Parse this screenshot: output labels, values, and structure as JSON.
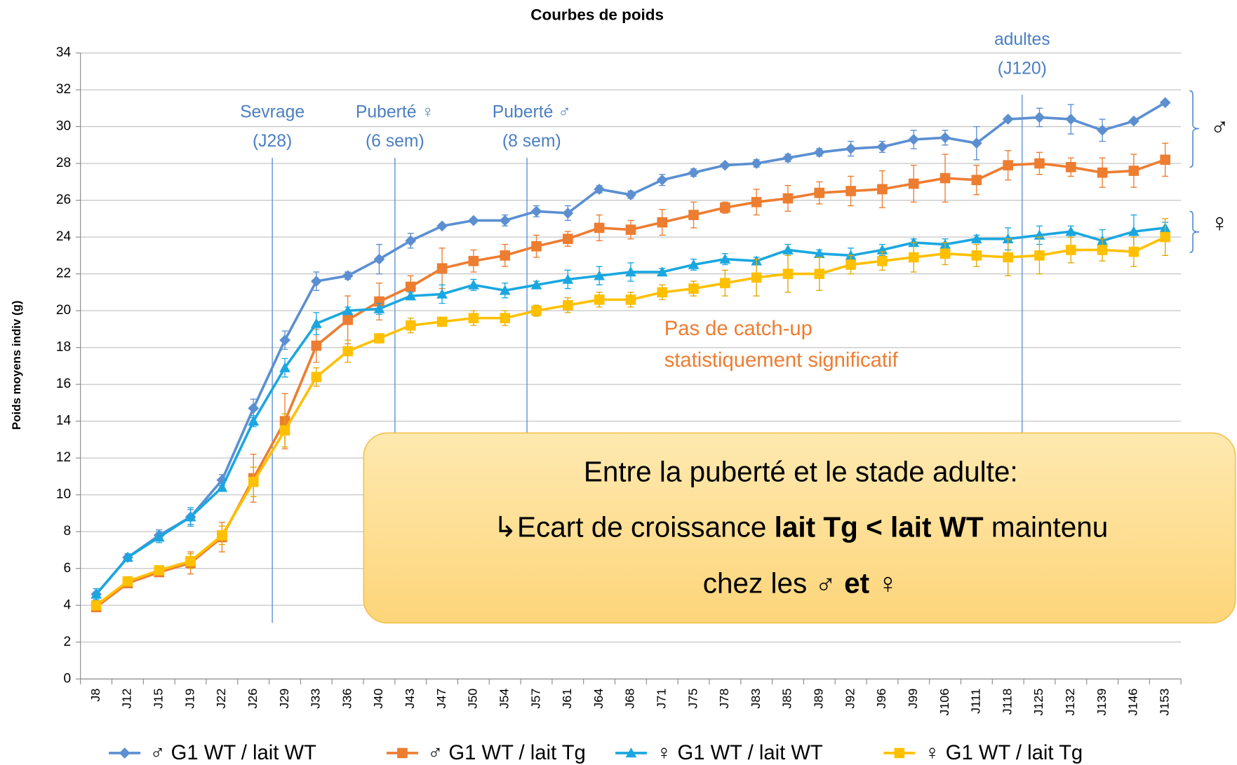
{
  "chart_data": {
    "type": "line",
    "title": "Courbes de poids",
    "y_label": "Poids moyens indiv (g)",
    "categories": [
      "J8",
      "J12",
      "J15",
      "J19",
      "J22",
      "J26",
      "J29",
      "J33",
      "J36",
      "J40",
      "J43",
      "J47",
      "J50",
      "J54",
      "J57",
      "J61",
      "J64",
      "J68",
      "J71",
      "J75",
      "J78",
      "J83",
      "J85",
      "J89",
      "J92",
      "J96",
      "J99",
      "J106",
      "J111",
      "J118",
      "J125",
      "J132",
      "J139",
      "J146",
      "J153"
    ],
    "ylim": [
      0,
      34
    ],
    "yticks": [
      0,
      2,
      4,
      6,
      8,
      10,
      12,
      14,
      16,
      18,
      20,
      22,
      24,
      26,
      28,
      30,
      32,
      34
    ],
    "grid": true,
    "series": [
      {
        "name": "♂ G1 WT / lait WT",
        "color": "#5b8fd1",
        "marker": "diamond",
        "values": [
          4.6,
          6.6,
          7.8,
          8.8,
          10.8,
          14.7,
          18.4,
          21.6,
          21.9,
          22.8,
          23.8,
          24.6,
          24.9,
          24.9,
          25.4,
          25.3,
          26.6,
          26.3,
          27.1,
          27.5,
          27.9,
          28.0,
          28.3,
          28.6,
          28.8,
          28.9,
          29.3,
          29.4,
          29.1,
          30.4,
          30.5,
          30.4,
          29.8,
          30.3,
          31.3
        ],
        "errors": [
          0.3,
          0.2,
          0.3,
          0.4,
          0.3,
          0.5,
          0.5,
          0.5,
          0.2,
          0.8,
          0.4,
          0.1,
          0.1,
          0.3,
          0.3,
          0.4,
          0.2,
          0.2,
          0.3,
          0.2,
          0.1,
          0.2,
          0.2,
          0.2,
          0.4,
          0.3,
          0.5,
          0.4,
          0.9,
          0.1,
          0.5,
          0.8,
          0.6,
          0.1,
          0.1
        ]
      },
      {
        "name": "♂ G1 WT / lait Tg",
        "color": "#ed7d31",
        "marker": "square",
        "values": [
          3.9,
          5.2,
          5.8,
          6.3,
          7.7,
          10.9,
          14.0,
          18.1,
          19.5,
          20.5,
          21.3,
          22.3,
          22.7,
          23.0,
          23.5,
          23.9,
          24.5,
          24.4,
          24.8,
          25.2,
          25.6,
          25.9,
          26.1,
          26.4,
          26.5,
          26.6,
          26.9,
          27.2,
          27.1,
          27.9,
          28.0,
          27.8,
          27.5,
          27.6,
          28.2
        ],
        "errors": [
          0.2,
          0.2,
          0.2,
          0.6,
          0.8,
          1.3,
          1.5,
          0.9,
          1.3,
          1.0,
          0.6,
          1.1,
          0.6,
          0.6,
          0.6,
          0.4,
          0.7,
          0.5,
          0.7,
          0.7,
          0.3,
          0.7,
          0.7,
          0.6,
          0.8,
          1.0,
          1.0,
          1.3,
          0.8,
          0.8,
          0.6,
          0.5,
          0.8,
          0.9,
          0.9
        ]
      },
      {
        "name": "♀ G1 WT / lait WT",
        "color": "#1aa7e0",
        "marker": "triangle",
        "values": [
          4.6,
          6.6,
          7.7,
          8.8,
          10.4,
          14.0,
          16.9,
          19.3,
          20.0,
          20.1,
          20.8,
          20.9,
          21.4,
          21.1,
          21.4,
          21.7,
          21.9,
          22.1,
          22.1,
          22.5,
          22.8,
          22.7,
          23.3,
          23.1,
          23.0,
          23.3,
          23.7,
          23.6,
          23.9,
          23.9,
          24.1,
          24.3,
          23.8,
          24.3,
          24.5
        ],
        "errors": [
          0.3,
          0.2,
          0.3,
          0.5,
          0.2,
          0.3,
          0.5,
          0.6,
          0.2,
          0.3,
          0.2,
          0.5,
          0.3,
          0.4,
          0.2,
          0.5,
          0.5,
          0.5,
          0.2,
          0.3,
          0.3,
          0.2,
          0.3,
          0.2,
          0.4,
          0.3,
          0.2,
          0.3,
          0.2,
          0.6,
          0.5,
          0.3,
          0.6,
          0.9,
          0.3
        ]
      },
      {
        "name": "♀ G1 WT / lait Tg",
        "color": "#ffc000",
        "marker": "square",
        "values": [
          4.0,
          5.3,
          5.9,
          6.4,
          7.8,
          10.7,
          13.5,
          16.4,
          17.8,
          18.5,
          19.2,
          19.4,
          19.6,
          19.6,
          20.0,
          20.3,
          20.6,
          20.6,
          21.0,
          21.2,
          21.5,
          21.8,
          22.0,
          22.0,
          22.5,
          22.7,
          22.9,
          23.1,
          23.0,
          22.9,
          23.0,
          23.3,
          23.3,
          23.2,
          24.0
        ],
        "errors": [
          0.2,
          0.2,
          0.2,
          0.4,
          0.5,
          0.8,
          0.9,
          0.5,
          0.6,
          0.2,
          0.4,
          0.2,
          0.4,
          0.4,
          0.3,
          0.4,
          0.4,
          0.4,
          0.4,
          0.4,
          0.7,
          1.0,
          1.0,
          0.9,
          0.5,
          0.5,
          0.8,
          0.6,
          0.6,
          1.0,
          1.0,
          0.7,
          0.6,
          0.8,
          1.0
        ]
      }
    ],
    "annotations": [
      {
        "lines": [
          "Sevrage",
          "(J28)"
        ]
      },
      {
        "lines": [
          "Puberté ♀",
          "(6 sem)"
        ]
      },
      {
        "lines": [
          "Puberté ♂",
          "(8 sem)"
        ]
      },
      {
        "lines": [
          "adultes",
          "(J120)"
        ]
      }
    ],
    "note": [
      "Pas de catch-up",
      "statistiquement significatif"
    ],
    "group_labels": [
      "♂",
      "♀"
    ],
    "callout": {
      "line1": "Entre la puberté et le stade adulte:",
      "line2": [
        "↳Ecart de croissance ",
        "lait Tg < lait WT",
        " maintenu"
      ],
      "line3": [
        "chez les ",
        "♂ et",
        " ♀"
      ]
    }
  }
}
